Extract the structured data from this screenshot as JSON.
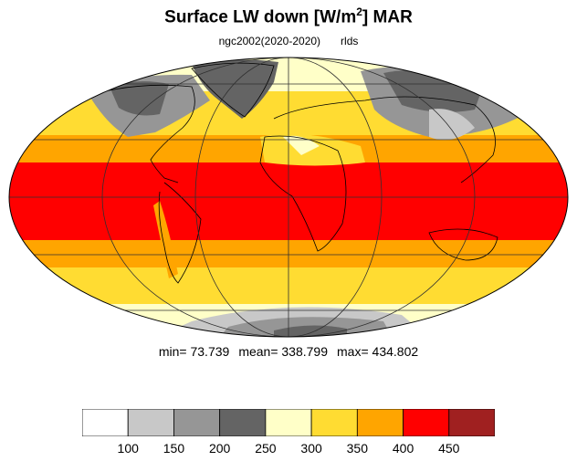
{
  "title": "Surface LW down [W/m",
  "title_sup": "2",
  "title_tail": "]  MAR",
  "subtitle_left": "ngc2002(2020-2020)",
  "subtitle_right": "rlds",
  "stats": {
    "min": "min=  73.739",
    "mean": "mean= 338.799",
    "max": "max= 434.802"
  },
  "colorbar": {
    "colors": [
      "#ffffff",
      "#c8c8c8",
      "#969696",
      "#646464",
      "#ffffc8",
      "#ffdc32",
      "#ffa500",
      "#ff0000",
      "#a02020"
    ],
    "labels": [
      "100",
      "150",
      "200",
      "250",
      "300",
      "350",
      "400",
      "450"
    ]
  }
}
